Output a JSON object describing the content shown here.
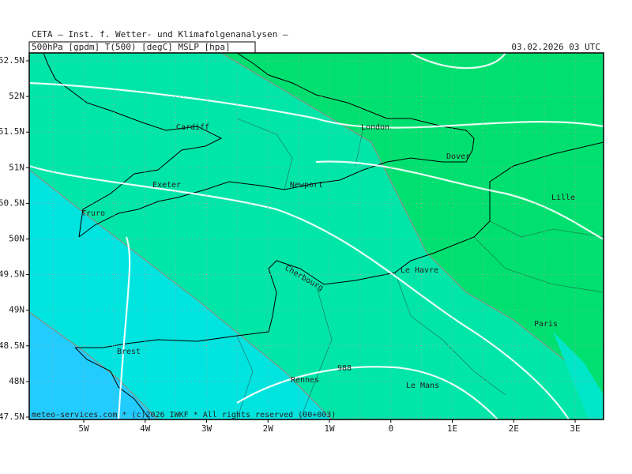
{
  "header": {
    "title": "CETA – Inst. f. Wetter- und Klimafolgenanalysen –",
    "fields": "500hPa [gpdm] T(500) [degC] MSLP [hpa]",
    "valid_time": "03.02.2026 03 UTC"
  },
  "axes": {
    "latitudes": [
      "52.5N",
      "52N",
      "51.5N",
      "51N",
      "50.5N",
      "50N",
      "49.5N",
      "49N",
      "48.5N",
      "48N",
      "47.5N"
    ],
    "longitudes": [
      "5W",
      "4W",
      "3W",
      "2W",
      "1W",
      "0",
      "1E",
      "2E",
      "3E"
    ]
  },
  "places": [
    "London",
    "Cardiff",
    "Dover",
    "Exeter",
    "Newport",
    "Lille",
    "Truro",
    "Le Havre",
    "Cherbourg",
    "Paris",
    "Brest",
    "Rennes",
    "Le Mans"
  ],
  "contour_labels": [
    "988"
  ],
  "footer": "meteo-services.com * (c)2026 IWKF * All rights reserved (00+003)"
}
